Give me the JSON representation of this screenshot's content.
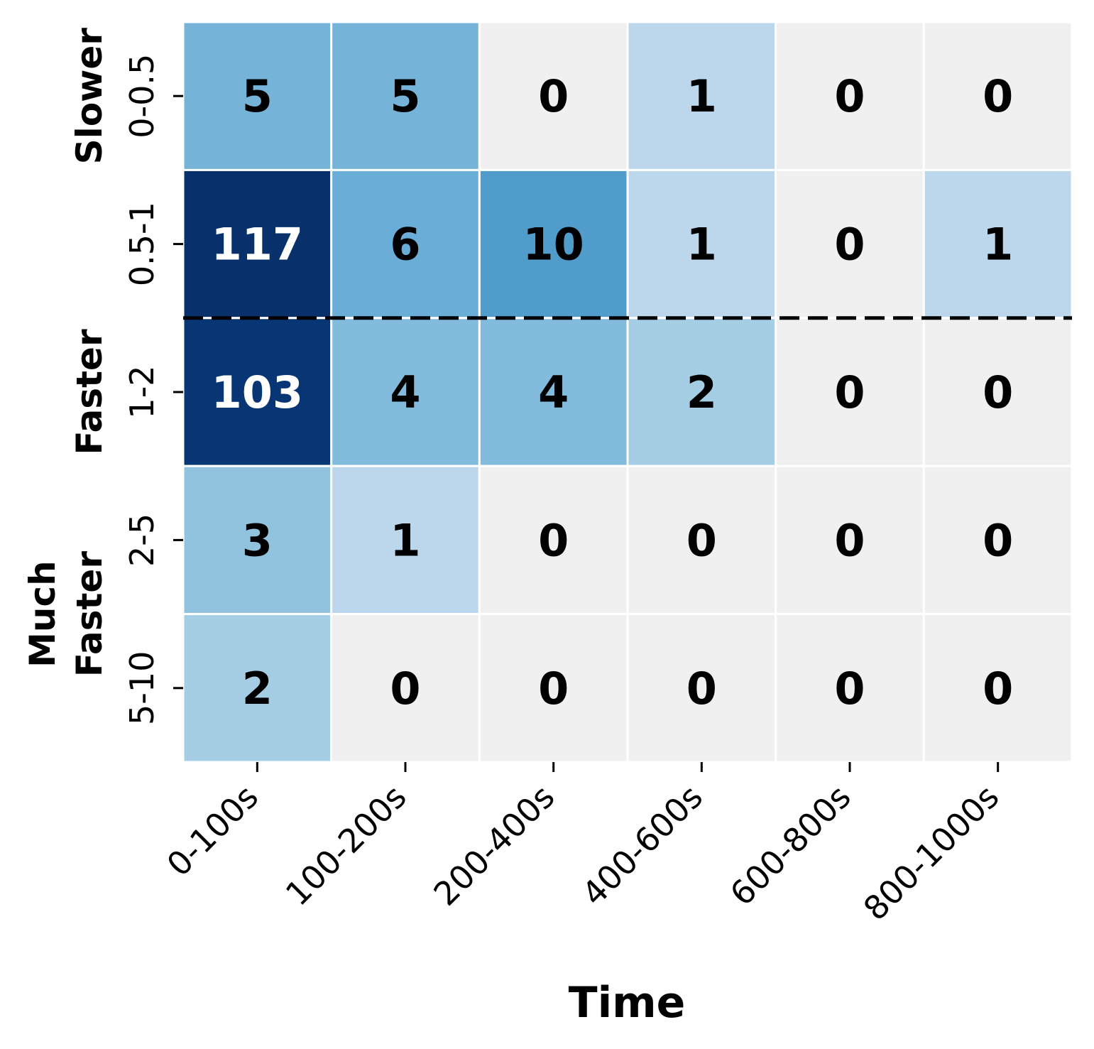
{
  "chart_data": {
    "type": "heatmap",
    "title": "",
    "xlabel": "Time",
    "ylabel": "",
    "x_categories": [
      "0-100s",
      "100-200s",
      "200-400s",
      "400-600s",
      "600-800s",
      "800-1000s"
    ],
    "y_categories": [
      "0-0.5",
      "0.5-1",
      "1-2",
      "2-5",
      "5-10"
    ],
    "values": [
      [
        5,
        5,
        0,
        1,
        0,
        0
      ],
      [
        117,
        6,
        10,
        1,
        0,
        1
      ],
      [
        103,
        4,
        4,
        2,
        0,
        0
      ],
      [
        3,
        1,
        0,
        0,
        0,
        0
      ],
      [
        2,
        0,
        0,
        0,
        0,
        0
      ]
    ],
    "row_groups": [
      {
        "lines": [
          "Slower"
        ],
        "rows": [
          0,
          1
        ]
      },
      {
        "lines": [
          "Faster"
        ],
        "rows": [
          2,
          3
        ]
      },
      {
        "lines": [
          "Much",
          "Faster"
        ],
        "rows": [
          3,
          5
        ]
      }
    ],
    "separator_after_row": 2,
    "colormap": "Blues",
    "zero_color": "#f0f0f0",
    "colorbar": false
  }
}
